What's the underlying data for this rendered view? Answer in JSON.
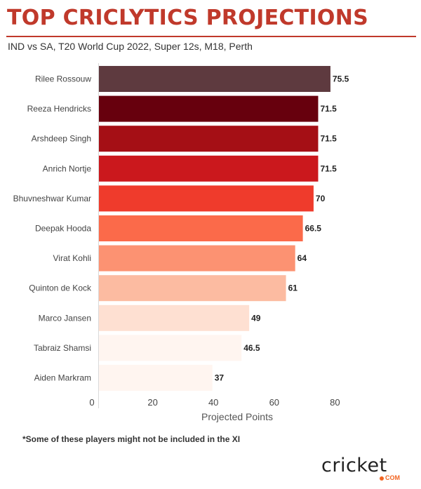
{
  "header": {
    "title": "TOP CRICLYTICS PROJECTIONS",
    "subtitle": "IND vs SA, T20 World Cup 2022, Super 12s, M18, Perth"
  },
  "footer": {
    "note": "*Some of these players might not be included in the XI",
    "logo_text": "cricket",
    "logo_suffix": "COM"
  },
  "chart_data": {
    "type": "bar",
    "orientation": "horizontal",
    "title": "TOP CRICLYTICS PROJECTIONS",
    "subtitle": "IND vs SA, T20 World Cup 2022, Super 12s, M18, Perth",
    "xlabel": "Projected Points",
    "ylabel": "",
    "xlim": [
      0,
      80
    ],
    "xticks": [
      0,
      20,
      40,
      60,
      80
    ],
    "grid": false,
    "legend": "none",
    "categories": [
      "Rilee Rossouw",
      "Reeza Hendricks",
      "Arshdeep Singh",
      "Anrich Nortje",
      "Bhuvneshwar Kumar",
      "Deepak Hooda",
      "Virat Kohli",
      "Quinton de Kock",
      "Marco Jansen",
      "Tabraiz Shamsi",
      "Aiden Markram"
    ],
    "values": [
      75.5,
      71.5,
      71.5,
      71.5,
      70,
      66.5,
      64,
      61,
      49,
      46.5,
      37
    ],
    "value_labels": [
      "75.5",
      "71.5",
      "71.5",
      "71.5",
      "70",
      "66.5",
      "64",
      "61",
      "49",
      "46.5",
      "37"
    ],
    "colors": [
      "#5e3a3f",
      "#67000d",
      "#a50f15",
      "#cb181d",
      "#ef3b2c",
      "#fb6a4a",
      "#fc9272",
      "#fcbba1",
      "#fee0d2",
      "#fff5f0",
      "#fff5f0"
    ]
  }
}
